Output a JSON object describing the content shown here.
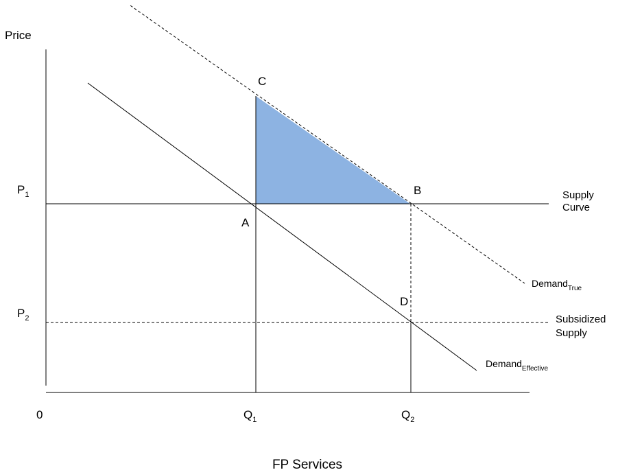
{
  "axis": {
    "y_title": "Price",
    "x_title": "FP Services",
    "origin": "0"
  },
  "prices": {
    "p1": {
      "letter": "P",
      "sub": "1"
    },
    "p2": {
      "letter": "P",
      "sub": "2"
    }
  },
  "quantities": {
    "q1": {
      "letter": "Q",
      "sub": "1"
    },
    "q2": {
      "letter": "Q",
      "sub": "2"
    }
  },
  "points": {
    "a": "A",
    "b": "B",
    "c": "C",
    "d": "D"
  },
  "curves": {
    "supply": {
      "line1": "Supply",
      "line2": "Curve"
    },
    "subsidized_supply": {
      "line1": "Subsidized",
      "line2": "Supply"
    },
    "demand_true": {
      "main": "Demand",
      "sub": "True"
    },
    "demand_effective": {
      "main": "Demand",
      "sub": "Effective"
    }
  },
  "colors": {
    "shaded_area": "#8db3e2",
    "lines": "#000000"
  }
}
